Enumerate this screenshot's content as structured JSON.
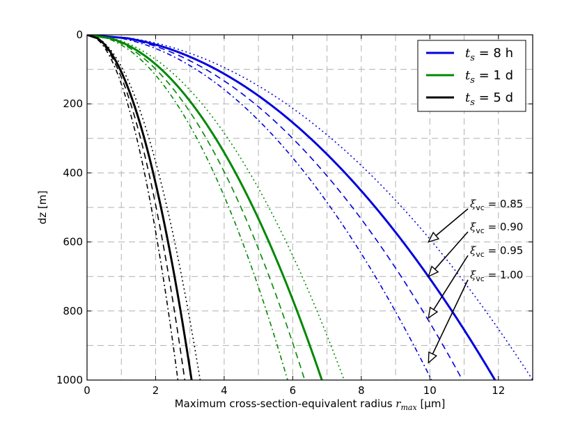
{
  "chart_data": {
    "type": "line",
    "xlabel": {
      "prefix": "Maximum cross-section-equivalent radius ",
      "var": "r",
      "sub": "max",
      "suffix": " [μm]"
    },
    "ylabel": "dz [m]",
    "xlim": [
      0,
      13
    ],
    "ylim": [
      1000,
      0
    ],
    "y_inverted": true,
    "xticks": [
      0,
      2,
      4,
      6,
      8,
      10,
      12
    ],
    "yticks": [
      0,
      200,
      400,
      600,
      800,
      1000
    ],
    "grid": true,
    "grid_x_minor_step": 1,
    "grid_y_minor_step": 100,
    "legend_position": "top-right",
    "legend": [
      {
        "var": "t",
        "sub": "s",
        "text": " = 8 h",
        "color": "#0000dd"
      },
      {
        "var": "t",
        "sub": "s",
        "text": " = 1 d",
        "color": "#008800"
      },
      {
        "var": "t",
        "sub": "s",
        "text": " = 5 d",
        "color": "#000000"
      }
    ],
    "line_styles": {
      "1.00": "solid",
      "0.95": "dashed",
      "0.90": "dashdot",
      "0.85": "dotted"
    },
    "curve_model": "r = r1000 * sqrt(dz/1000)",
    "series": [
      {
        "group": "8 h",
        "xi": "1.00",
        "color": "#0000dd",
        "r_at_1000": 11.9
      },
      {
        "group": "8 h",
        "xi": "0.95",
        "color": "#0000dd",
        "r_at_1000": 10.95
      },
      {
        "group": "8 h",
        "xi": "0.90",
        "color": "#0000dd",
        "r_at_1000": 10.05
      },
      {
        "group": "8 h",
        "xi": "0.85",
        "color": "#0000dd",
        "r_at_1000": 13.0
      },
      {
        "group": "1 d",
        "xi": "1.00",
        "color": "#008800",
        "r_at_1000": 6.85
      },
      {
        "group": "1 d",
        "xi": "0.95",
        "color": "#008800",
        "r_at_1000": 6.35
      },
      {
        "group": "1 d",
        "xi": "0.90",
        "color": "#008800",
        "r_at_1000": 5.85
      },
      {
        "group": "1 d",
        "xi": "0.85",
        "color": "#008800",
        "r_at_1000": 7.5
      },
      {
        "group": "5 d",
        "xi": "1.00",
        "color": "#000000",
        "r_at_1000": 3.05
      },
      {
        "group": "5 d",
        "xi": "0.95",
        "color": "#000000",
        "r_at_1000": 2.85
      },
      {
        "group": "5 d",
        "xi": "0.90",
        "color": "#000000",
        "r_at_1000": 2.65
      },
      {
        "group": "5 d",
        "xi": "0.85",
        "color": "#000000",
        "r_at_1000": 3.3
      }
    ],
    "annotations": [
      {
        "var": "ξ",
        "sub": "vc",
        "text": " = 0.85",
        "point": [
          10.0,
          600
        ]
      },
      {
        "var": "ξ",
        "sub": "vc",
        "text": " = 0.90",
        "point": [
          10.0,
          700
        ]
      },
      {
        "var": "ξ",
        "sub": "vc",
        "text": " = 0.95",
        "point": [
          10.0,
          820
        ]
      },
      {
        "var": "ξ",
        "sub": "vc",
        "text": " = 1.00",
        "point": [
          10.0,
          950
        ]
      }
    ]
  }
}
